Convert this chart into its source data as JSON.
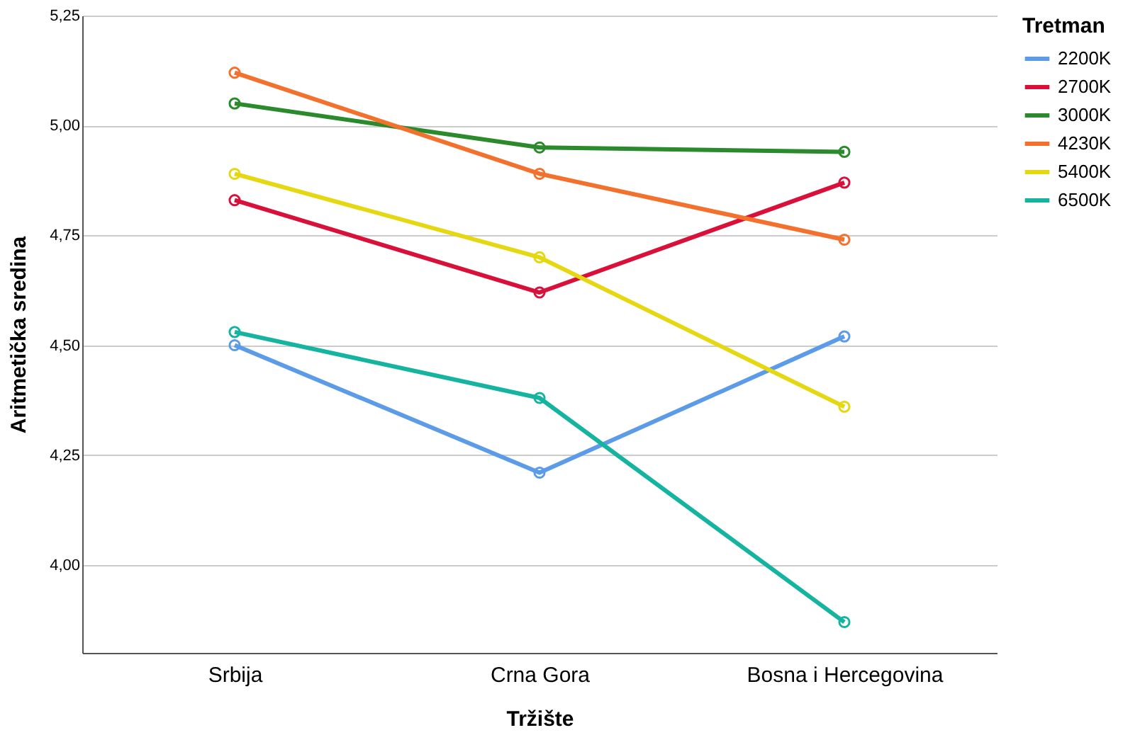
{
  "chart_data": {
    "type": "line",
    "xlabel": "Tržište",
    "ylabel": "Aritmetička sredina",
    "legend_title": "Tretman",
    "categories": [
      "Srbija",
      "Crna Gora",
      "Bosna i Hercegovina"
    ],
    "series": [
      {
        "name": "2200K",
        "color": "#5b9be8",
        "values": [
          4.5,
          4.21,
          4.52
        ]
      },
      {
        "name": "2700K",
        "color": "#d9103a",
        "values": [
          4.83,
          4.62,
          4.87
        ]
      },
      {
        "name": "3000K",
        "color": "#2b8a2b",
        "values": [
          5.05,
          4.95,
          4.94
        ]
      },
      {
        "name": "4230K",
        "color": "#f4702d",
        "values": [
          5.12,
          4.89,
          4.74
        ]
      },
      {
        "name": "5400K",
        "color": "#e5d710",
        "values": [
          4.89,
          4.7,
          4.36
        ]
      },
      {
        "name": "6500K",
        "color": "#14b4a0",
        "values": [
          4.53,
          4.38,
          3.87
        ]
      }
    ],
    "ylim": [
      3.8,
      5.25
    ],
    "yticks": [
      {
        "value": 4,
        "label": "4,00"
      },
      {
        "value": 4.25,
        "label": "4,25"
      },
      {
        "value": 4.5,
        "label": "4,50"
      },
      {
        "value": 4.75,
        "label": "4,75"
      },
      {
        "value": 5,
        "label": "5,00"
      },
      {
        "value": 5.25,
        "label": "5,25"
      }
    ],
    "grid": "y",
    "legend": "top right",
    "marker": "circle",
    "line_style": "solid"
  }
}
